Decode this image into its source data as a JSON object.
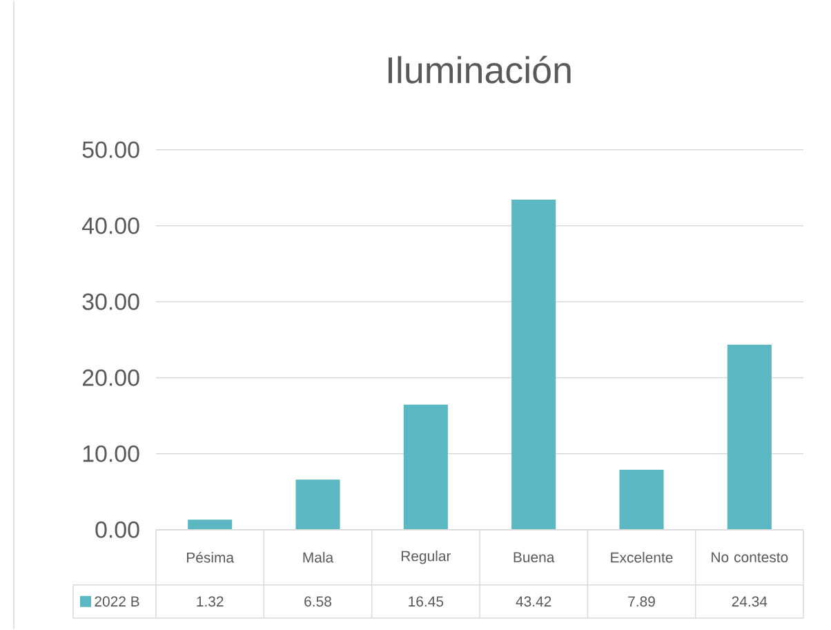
{
  "chart_data": {
    "type": "bar",
    "title": "Iluminación",
    "categories": [
      "Pésima",
      "Mala",
      "Regular",
      "Buena",
      "Excelente",
      "No contesto"
    ],
    "series": [
      {
        "name": "2022 B",
        "color": "#5bb8c2",
        "values": [
          1.32,
          6.58,
          16.45,
          43.42,
          7.89,
          24.34
        ]
      }
    ],
    "ylim": [
      0,
      50
    ],
    "yticks": [
      {
        "value": 0,
        "label": "0.00"
      },
      {
        "value": 10,
        "label": "10.00"
      },
      {
        "value": 20,
        "label": "20.00"
      },
      {
        "value": 30,
        "label": "30.00"
      },
      {
        "value": 40,
        "label": "40.00"
      },
      {
        "value": 50,
        "label": "50.00"
      }
    ],
    "grid": "y",
    "legend": "bottom",
    "data_labels": true
  }
}
